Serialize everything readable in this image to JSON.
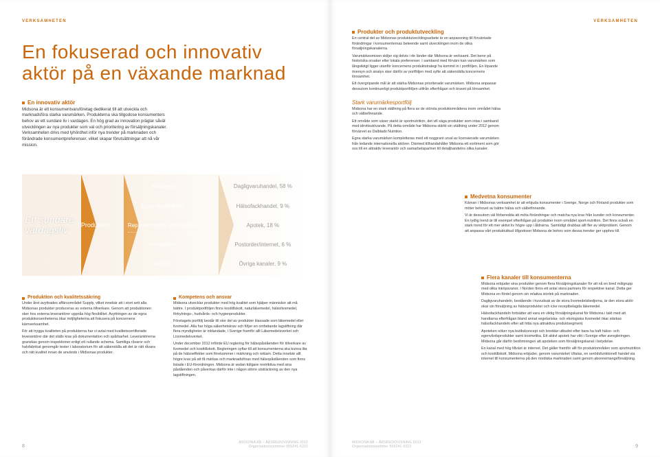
{
  "colors": {
    "accent": "#c9660c",
    "accent_light": "#d37516",
    "flow_orange": "#dc8a29",
    "flow_orange2": "#e6a759",
    "flow_tan": "#efd7b9",
    "flow_cream": "#f8efe5",
    "text": "#3a3a3a",
    "muted": "#9a9a9a"
  },
  "running_head": "VERKSAMHETEN",
  "footer_line1": "MIDSONA AB – ÅRSREDOVISNING 2012",
  "footer_line2": "Organisationsnummer 556241-5322",
  "left": {
    "page_no": "8",
    "headline": "En fokuserad och innovativ aktör på en växande marknad",
    "intro": {
      "heading": "En innovativ aktör",
      "p1": "Midsona är ett konsumentvaruföretag dedikerat till att utveckla och marknadsföra starka varumärken. Produkterna ska tillgodose konsumenters behov av ett sundare liv i vardagen. En hög grad av innovation präglar såväl utvecklingen av nya produkter som val och prioritering av försäljningskanaler. Verksamheten drivs med lyhördhet inför nya trender på marknaden och förändrade konsumentpreferenser, vilket skapar förutsättningar att nå vår mission."
    },
    "flow": {
      "type": "flowchart",
      "c1": "Ett sundare vardagsliv",
      "c2": "Produktion",
      "c3": [
        "Sortiment",
        "Egna varumärken",
        "Representerade varumärken",
        "Kompetens",
        "Ansvar"
      ],
      "c4": [
        "Dagligvaruhandel, 58 %",
        "Hälsofackhandel, 9 %",
        "Apotek, 18 %",
        "Postorder/internet, 6 %",
        "Övriga kanaler, 9 %"
      ],
      "chevron_colors": [
        "#dc8a29",
        "#e6a759",
        "#efd7b9",
        "#f8efe5"
      ]
    },
    "bottom": {
      "col1": {
        "heading": "Produktion och kvalitetssäkring",
        "paras": [
          "Under året avyttrades affärsområdet Supply, vilket innebär att i stort sett alla Midsonas produkter produceras av externa tillverkare. Genom att produktionen sker hos externa leverantörer uppnås hög flexibilitet. Avyttringen av de egna produktionsenheterna ökar möjligheterna att fokusera på koncernens kärnverksamhet.",
          "För att trygga kvaliteten på produkterna har vi avtal med kvalitetscertifierade leverantörer där det ställs krav på dokumentation och spårbarhet. Leverantörerna granskas genom inspektioner enligt ett rullande schema. Samtliga råvaror och halvfabrikat genomgår tester i laboratorium för att säkerställa att det är rätt råvara och rätt kvalitet innan de används i Midsonas produkter."
        ]
      },
      "col2": {
        "heading": "Kompetens och ansvar",
        "paras": [
          "Midsona utvecklar produkter med hög kvalitet som hjälper människor att må bättre. I produktportföljen finns kosttillskott, naturläkemedel, hälsolivsmedel, förkylnings-, hudvårds- och hygienprodukter.",
          "Företagets portfölj består till stor del av produkter klassade som läkemedel eller livsmedel. Alla har höga säkerhetskrav och följer en omfattande lagstiftning där flera myndigheter är inblandade, i Sverige framför allt Läkemedelsverket och Livsmedelsverket.",
          "Under december 2012 införde EU reglering för hälsopåståenden för tillverkare av livsmedel och kosttillskott. Regleringen syftar till att konsumenterna ska kunna lita på de hälsoeffekter som förekommer i märkning och reklam. Detta innebär allt högre krav på att få märkas och marknadsföras med hälsopåståenden som finns listade i EU-förordningen. Midsona är sedan tidigare restriktiva med sina påståenden och påverkas därför inte i någon större utsträckning av den nya lagstiftningen."
        ]
      }
    }
  },
  "right": {
    "page_no": "9",
    "top": {
      "heading": "Produkter och produktutveckling",
      "paras": [
        "En central del av Midsonas produktutvecklingsarbete är en anpassning till förväntade förändringar i konsumenternas beteende samt utvecklingen inom de olika försäljningskanalerna.",
        "Varumärkesmixen skiljer sig delvis i de länder där Midsona är verksamt. Det beror på historiska orsaker eller lokala preferenser. I samband med förvärv kan varumärken som långsiktigt ligger utanför koncernens produktstrategi ha kommit in i portföljen. En löpande översyn och analys sker därför av portföljen med syfte att säkerställa koncernens lönsamhet.",
        "Ett övergripande mål är att stärka Midsonas prioriterade varumärken. Midsona anpassar dessutom kontinuerligt produktportföljen utifrån efterfrågan och kravet på lönsamhet."
      ],
      "sub_heading": "Stark varumärkesportfölj",
      "sub_paras": [
        "Midsona har en stark ställning på flera av de största produktområdena inom området hälsa och välbefinnande.",
        "Ett område som växer starkt är sportnutrition, det vill säga produkter som intas i samband med idrottsutövande. På detta område har Midsona stärkt sin ställning under 2012 genom förvärvet av Dalblads Nutrition.",
        "Egna starka varumärken kompletteras med ett noggrant urval av licensierade varumärken från ledande internationella aktörer. Därmed tillhandahåller Midsona ett sortiment som gör oss till en attraktiv leverantör och samarbetspartner till detaljhandelns olika kanaler."
      ]
    },
    "mid": {
      "heading": "Medvetna konsumenter",
      "paras": [
        "Kärnan i Midsonas verksamhet är att erbjuda konsumenter i Sverige, Norge och Finland produkter som möter behovet av bättre hälsa och välbefinnande.",
        "Vi är dessutom väl förberedda att möta förändringar och matcha nya krav från kunder och konsumenter. En tydlig trend är till exempel efterfrågan på produkter inom området sport-nutrition. Det finns också en stark trend för ett mer aktivt liv högre upp i åldrarna. Samtidigt drabbas allt fler av viktproblem. Genom att anpassa vårt produktutbud tillgodoser Midsona de behov som dessa trender ger upphov till."
      ]
    },
    "bottom": {
      "heading": "Flera kanaler till konsumenterna",
      "paras": [
        "Midsona erbjuder sina produkter genom flera försäljningskanaler för att nå en bred målgrupp med olika inköpsvanor. I Norden finns ett antal stora partners för respektive kanal. Detta ger Midsona en fördel genom sin relativa storlek på marknaden.",
        "Dagligvaruhandeln, bestående i huvudsak av de stora livsmedelskedjorna, är den stora aktör okar sin försäljning av hälsoprodukter och icke receptbelagda läkemedel.",
        "Hälsofackhandeln fortsätter att vara en viktig försäljningskanal för Midsona i takt med att handlarna efterfrågan bland annat vegetariska- och ekologiska livsmedel ökar stärkas hälsofackhandeln efter att hitta nya attraktiva produktsegment.",
        "Apoteken söker nya butikskoncept och breddar utbudet efter bara ha haft hälso- och egenvårdsprodukter samt kosmetika. Ett aktivt apotek har vikt i Sverige efter avregleringen. Midsona går därför bedömningen att apoteken som försäljningskanal i betydelse.",
        "En kanal med hög tillväxt är internet. Det gäller framför allt för produktområden som sportnutrition och kosttillskott. Midsona erbjuder, genom varumärket Vitalas, en serödsfunktionell handel via internet till konsumenterna på den nordiska marknaden samt genom abonnemangsförsäljning."
      ]
    }
  }
}
